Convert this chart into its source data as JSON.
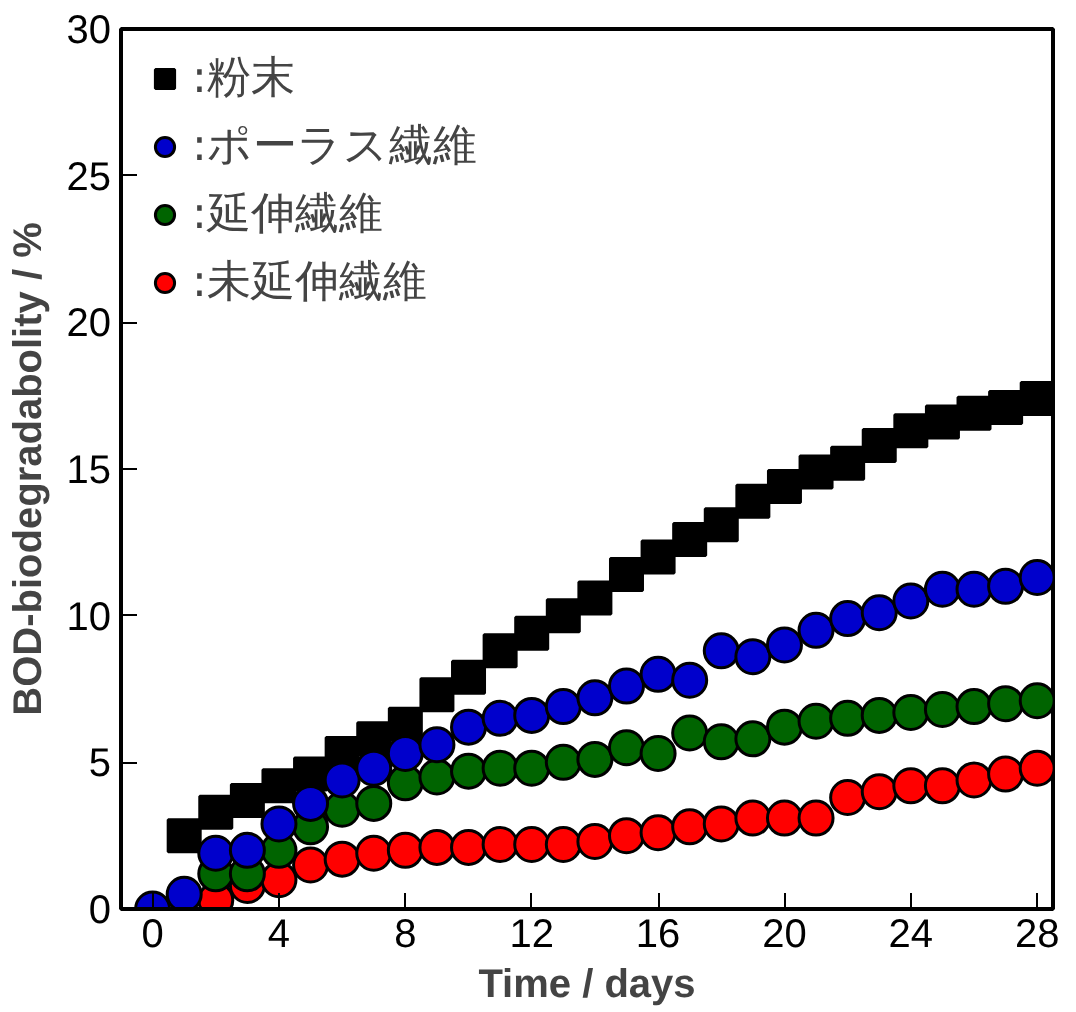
{
  "chart_data": {
    "type": "scatter",
    "xlabel": "Time / days",
    "ylabel": "BOD-biodegradabolity / %",
    "xlim": [
      -1,
      28.5
    ],
    "ylim": [
      0,
      30
    ],
    "xticks": [
      0,
      4,
      8,
      12,
      16,
      20,
      24,
      28
    ],
    "yticks": [
      0,
      5,
      10,
      15,
      20,
      25,
      30
    ],
    "grid": false,
    "legend": "top left",
    "series": [
      {
        "name": ":粉末",
        "color": "#000000",
        "marker": "square",
        "x": [
          1,
          2,
          3,
          4,
          5,
          6,
          7,
          8,
          9,
          10,
          11,
          12,
          13,
          14,
          15,
          16,
          17,
          18,
          19,
          20,
          21,
          22,
          23,
          24,
          25,
          26,
          27,
          28
        ],
        "values": [
          2.5,
          3.3,
          3.7,
          4.2,
          4.6,
          5.3,
          5.8,
          6.3,
          7.3,
          7.9,
          8.8,
          9.4,
          10.0,
          10.6,
          11.4,
          12.0,
          12.6,
          13.1,
          13.9,
          14.4,
          14.9,
          15.2,
          15.8,
          16.3,
          16.6,
          16.9,
          17.1,
          17.4
        ]
      },
      {
        "name": ":ポーラス繊維",
        "color": "#0000cc",
        "marker": "circle",
        "x": [
          0,
          1,
          2,
          3,
          4,
          5,
          6,
          7,
          8,
          9,
          10,
          11,
          12,
          13,
          14,
          15,
          16,
          17,
          18,
          19,
          20,
          21,
          22,
          23,
          24,
          25,
          26,
          27,
          28
        ],
        "values": [
          0,
          0.5,
          1.9,
          2.0,
          2.9,
          3.6,
          4.4,
          4.8,
          5.3,
          5.6,
          6.2,
          6.5,
          6.6,
          6.9,
          7.2,
          7.6,
          8.0,
          7.8,
          8.8,
          8.6,
          9.0,
          9.5,
          9.9,
          10.1,
          10.5,
          10.9,
          10.9,
          11.0,
          11.3
        ]
      },
      {
        "name": ":延伸繊維",
        "color": "#006400",
        "marker": "circle",
        "x": [
          2,
          3,
          4,
          5,
          6,
          7,
          8,
          9,
          10,
          11,
          12,
          13,
          14,
          15,
          16,
          17,
          18,
          19,
          20,
          21,
          22,
          23,
          24,
          25,
          26,
          27,
          28
        ],
        "values": [
          1.2,
          1.2,
          2.0,
          2.8,
          3.4,
          3.6,
          4.3,
          4.5,
          4.7,
          4.8,
          4.8,
          5.0,
          5.1,
          5.5,
          5.3,
          6.0,
          5.7,
          5.8,
          6.2,
          6.4,
          6.5,
          6.6,
          6.7,
          6.8,
          6.9,
          7.0,
          7.1
        ]
      },
      {
        "name": ":未延伸繊維",
        "color": "#ff0000",
        "marker": "circle",
        "x": [
          2,
          3,
          4,
          5,
          6,
          7,
          8,
          9,
          10,
          11,
          12,
          13,
          14,
          15,
          16,
          17,
          18,
          19,
          20,
          21,
          22,
          23,
          24,
          25,
          26,
          27,
          28
        ],
        "values": [
          0.3,
          0.8,
          1.0,
          1.5,
          1.7,
          1.9,
          2.0,
          2.1,
          2.1,
          2.2,
          2.2,
          2.2,
          2.3,
          2.5,
          2.6,
          2.8,
          2.9,
          3.1,
          3.1,
          3.1,
          3.8,
          4.0,
          4.2,
          4.2,
          4.4,
          4.6,
          4.8
        ]
      }
    ]
  }
}
